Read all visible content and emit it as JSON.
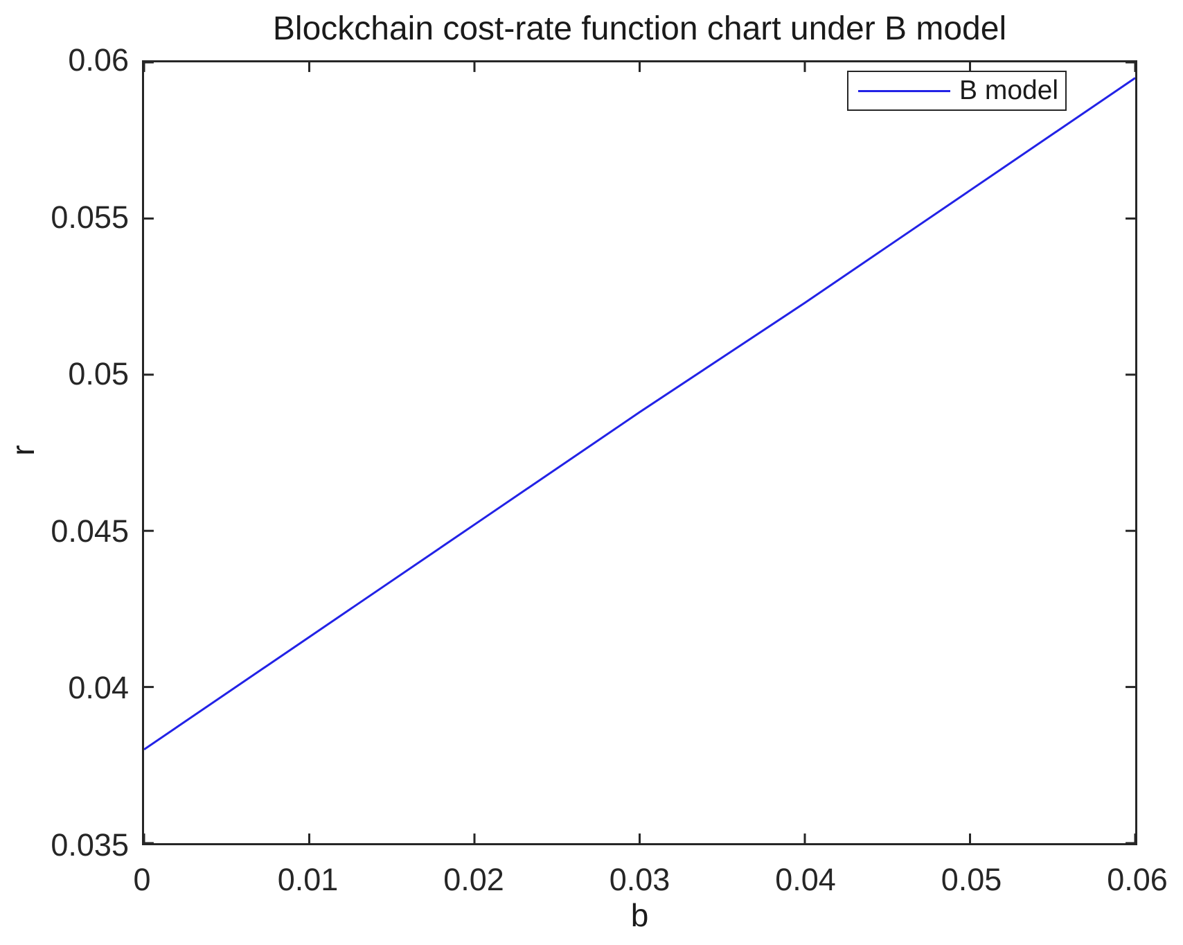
{
  "figure": {
    "background": "#ffffff",
    "axis_color": "#262626",
    "text_color": "#1a1a1a"
  },
  "chart_data": {
    "type": "line",
    "title": "Blockchain cost-rate function chart under B model",
    "xlabel": "b",
    "ylabel": "r",
    "xlim": [
      0,
      0.06
    ],
    "ylim": [
      0.035,
      0.06
    ],
    "xticks": [
      0,
      0.01,
      0.02,
      0.03,
      0.04,
      0.05,
      0.06
    ],
    "xtick_labels": [
      "0",
      "0.01",
      "0.02",
      "0.03",
      "0.04",
      "0.05",
      "0.06"
    ],
    "yticks": [
      0.035,
      0.04,
      0.045,
      0.05,
      0.055,
      0.06
    ],
    "ytick_labels": [
      "0.035",
      "0.04",
      "0.045",
      "0.05",
      "0.055",
      "0.06"
    ],
    "grid": false,
    "legend": {
      "position": "top-right"
    },
    "series": [
      {
        "name": "B model",
        "color": "#2222e6",
        "x": [
          0,
          0.01,
          0.02,
          0.03,
          0.04,
          0.05,
          0.06
        ],
        "y": [
          0.038,
          0.0416,
          0.0452,
          0.0488,
          0.0523,
          0.0559,
          0.0595
        ]
      }
    ]
  }
}
